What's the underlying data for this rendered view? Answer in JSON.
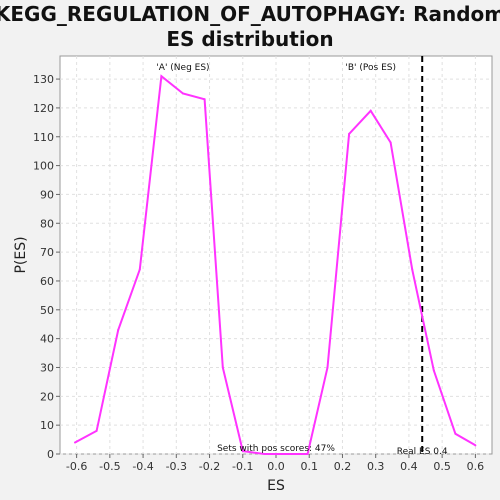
{
  "chart_data": {
    "type": "line",
    "title_line1": "KEGG_REGULATION_OF_AUTOPHAGY: Random",
    "title_line2": "ES distribution",
    "xlabel": "ES",
    "ylabel": "P(ES)",
    "xlim": [
      -0.65,
      0.65
    ],
    "ylim": [
      0,
      138
    ],
    "xticks": [
      -0.6,
      -0.5,
      -0.4,
      -0.3,
      -0.2,
      -0.1,
      0.0,
      0.1,
      0.2,
      0.3,
      0.4,
      0.5,
      0.6
    ],
    "xtick_labels": [
      "-0.6",
      "-0.5",
      "-0.4",
      "-0.3",
      "-0.2",
      "-0.1",
      "0.0",
      "0.1",
      "0.2",
      "0.3",
      "0.4",
      "0.5",
      "0.6"
    ],
    "yticks": [
      0,
      10,
      20,
      30,
      40,
      50,
      60,
      70,
      80,
      90,
      100,
      110,
      120,
      130
    ],
    "ytick_labels": [
      "0",
      "10",
      "20",
      "30",
      "40",
      "50",
      "60",
      "70",
      "80",
      "90",
      "100",
      "110",
      "120",
      "130"
    ],
    "grid": true,
    "series": [
      {
        "color": "#ff33ff",
        "x": [
          -0.605,
          -0.54,
          -0.475,
          -0.41,
          -0.345,
          -0.28,
          -0.215,
          -0.16,
          -0.1,
          -0.035,
          0.03,
          0.095,
          0.155,
          0.22,
          0.285,
          0.345,
          0.41,
          0.475,
          0.54,
          0.6
        ],
        "y": [
          4,
          8,
          43,
          64,
          131,
          125,
          123,
          30,
          1,
          0,
          0,
          0,
          30,
          111,
          119,
          108,
          64,
          29,
          7,
          3
        ]
      }
    ],
    "real_es": {
      "value": 0.44,
      "label": "Real ES 0.4"
    },
    "annotations": {
      "neg": {
        "text": "'A' (Neg ES)",
        "color": "#2222cc",
        "x": -0.28
      },
      "pos": {
        "text": "'B' (Pos ES)",
        "color": "#dd2222",
        "x": 0.285
      },
      "pos_scores": "Sets with pos scores: 47%"
    }
  }
}
